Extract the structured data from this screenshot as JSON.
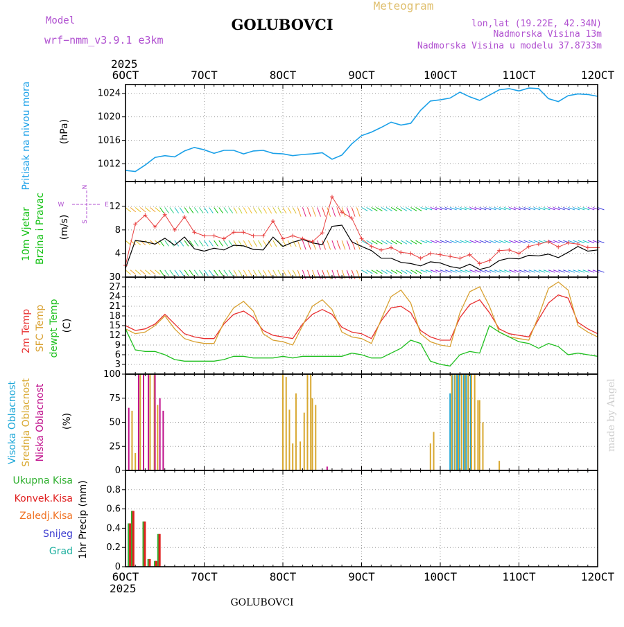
{
  "header": {
    "model_label": "Model",
    "model_name": "wrf−nmm_v3.9.1 e3km",
    "station": "GOLUBOVCI",
    "product": "Meteogram",
    "lonlat": "lon,lat (19.22E, 42.34N)",
    "elevation": "Nadmorska Visina 13m",
    "model_elevation": "Nadmorska Visina u modelu 37.8733m",
    "year_top": "2025",
    "year_bottom": "2025",
    "footer_station": "GOLUBOVCI",
    "credit": "made by Angel"
  },
  "colors": {
    "pressure": "#1aa0e8",
    "wind_label": "#10c010",
    "temp_2m": "#e83030",
    "sfc_temp": "#d8a030",
    "dewpt": "#20c020",
    "high_cloud": "#20a8d8",
    "mid_cloud": "#d8a830",
    "low_cloud": "#c0108c",
    "wind_speed_10m": "#000000",
    "wind_gust": "#e84040",
    "model_text": "#b050d0",
    "meteogram_text": "#e0c070",
    "precip_total": "#30b030",
    "precip_conv": "#e02020",
    "precip_ice": "#f07020",
    "snow": "#4040d0",
    "hail": "#20b0a0"
  },
  "chart_data": [
    {
      "id": "pressure",
      "type": "line",
      "title": "Pritisak na nivou mora",
      "ylabel": "(hPa)",
      "ylim": [
        1009,
        1025.5
      ],
      "yticks": [
        1012,
        1016,
        1020,
        1024
      ],
      "xlim": [
        0,
        144
      ],
      "xticks_top": [
        "6OCT",
        "7OCT",
        "8OCT",
        "9OCT",
        "10OCT",
        "11OCT",
        "12OCT"
      ],
      "xticks_bottom": [
        "6OCT",
        "7OCT",
        "8OCT",
        "9OCT",
        "10OCT",
        "11OCT",
        "12OCT"
      ],
      "grid": true,
      "x": [
        0,
        3,
        6,
        9,
        12,
        15,
        18,
        21,
        24,
        27,
        30,
        33,
        36,
        39,
        42,
        45,
        48,
        51,
        54,
        57,
        60,
        63,
        66,
        69,
        72,
        75,
        78,
        81,
        84,
        87,
        90,
        93,
        96,
        99,
        102,
        105,
        108,
        111,
        114,
        117,
        120,
        123,
        126,
        129,
        132,
        135,
        138,
        141,
        144
      ],
      "values": [
        1010.9,
        1010.7,
        1011.8,
        1013.1,
        1013.4,
        1013.2,
        1014.2,
        1014.8,
        1014.4,
        1013.8,
        1014.3,
        1014.3,
        1013.7,
        1014.2,
        1014.3,
        1013.8,
        1013.7,
        1013.4,
        1013.6,
        1013.7,
        1013.9,
        1012.8,
        1013.5,
        1015.4,
        1016.8,
        1017.4,
        1018.2,
        1019.1,
        1018.6,
        1018.9,
        1021.1,
        1022.7,
        1022.9,
        1023.2,
        1024.2,
        1023.4,
        1022.8,
        1023.7,
        1024.6,
        1024.8,
        1024.4,
        1024.9,
        1024.8,
        1023.1,
        1022.6,
        1023.6,
        1023.9,
        1023.8,
        1023.5
      ]
    },
    {
      "id": "wind",
      "type": "line",
      "title_line1": "10m Vjetar",
      "title_line2": "Brzina i Pravac",
      "ylabel": "(m/s)",
      "ylim": [
        0,
        16.2
      ],
      "yticks": [
        0,
        4,
        8,
        12
      ],
      "compass_n": "N",
      "compass_w": "W",
      "compass_e": "E",
      "compass_s": "S",
      "grid": true,
      "x": [
        0,
        3,
        6,
        9,
        12,
        15,
        18,
        21,
        24,
        27,
        30,
        33,
        36,
        39,
        42,
        45,
        48,
        51,
        54,
        57,
        60,
        63,
        66,
        69,
        72,
        75,
        78,
        81,
        84,
        87,
        90,
        93,
        96,
        99,
        102,
        105,
        108,
        111,
        114,
        117,
        120,
        123,
        126,
        129,
        132,
        135,
        138,
        141,
        144
      ],
      "series": [
        {
          "name": "10m wind speed",
          "values": [
            1.5,
            6.2,
            6.0,
            5.6,
            6.6,
            5.4,
            6.8,
            4.8,
            4.4,
            4.9,
            4.6,
            5.4,
            5.3,
            4.7,
            4.6,
            6.8,
            5.2,
            5.9,
            6.4,
            5.8,
            5.5,
            8.6,
            8.8,
            6.0,
            5.2,
            4.5,
            3.2,
            3.2,
            2.5,
            2.3,
            1.9,
            2.6,
            2.4,
            1.8,
            1.5,
            2.2,
            1.3,
            1.7,
            2.8,
            3.2,
            3.1,
            3.7,
            3.6,
            3.9,
            3.3,
            4.2,
            5.2,
            4.4,
            4.6
          ]
        },
        {
          "name": "gust",
          "values": [
            2.0,
            9.0,
            10.5,
            8.5,
            10.6,
            8.0,
            10.2,
            7.6,
            7.0,
            7.0,
            6.5,
            7.6,
            7.6,
            7.0,
            7.0,
            9.5,
            6.5,
            7.0,
            6.5,
            6.0,
            7.5,
            13.6,
            11.0,
            10.0,
            6.5,
            5.2,
            4.6,
            5.0,
            4.2,
            4.0,
            3.2,
            4.0,
            3.8,
            3.5,
            3.2,
            3.8,
            2.3,
            2.8,
            4.5,
            4.6,
            4.0,
            5.2,
            5.6,
            6.0,
            5.1,
            5.8,
            5.6,
            5.0,
            5.0
          ]
        }
      ]
    },
    {
      "id": "temperature",
      "type": "line",
      "title_2m": "2m Temp",
      "title_sfc": "SFC Temp",
      "title_dew": "dewpt Temp",
      "ylabel": "(C)",
      "ylim": [
        0,
        30
      ],
      "yticks": [
        0,
        3,
        6,
        9,
        12,
        15,
        18,
        21,
        24,
        27,
        30
      ],
      "grid": true,
      "x": [
        0,
        3,
        6,
        9,
        12,
        15,
        18,
        21,
        24,
        27,
        30,
        33,
        36,
        39,
        42,
        45,
        48,
        51,
        54,
        57,
        60,
        63,
        66,
        69,
        72,
        75,
        78,
        81,
        84,
        87,
        90,
        93,
        96,
        99,
        102,
        105,
        108,
        111,
        114,
        117,
        120,
        123,
        126,
        129,
        132,
        135,
        138,
        141,
        144
      ],
      "series": [
        {
          "name": "2m Temp",
          "values": [
            15.0,
            13.5,
            14.0,
            15.5,
            18.5,
            15.5,
            12.5,
            11.5,
            11.0,
            11.0,
            15.5,
            18.5,
            19.5,
            17.5,
            13.5,
            12.0,
            11.5,
            11.0,
            15.5,
            18.5,
            20.0,
            18.5,
            14.5,
            13.0,
            12.5,
            11.0,
            16.5,
            20.5,
            21.0,
            19.0,
            13.5,
            11.5,
            10.5,
            10.5,
            17.5,
            21.5,
            23.0,
            19.0,
            14.0,
            12.5,
            12.0,
            11.5,
            17.0,
            22.0,
            24.5,
            23.5,
            16.0,
            14.0,
            12.5
          ]
        },
        {
          "name": "SFC Temp",
          "values": [
            14.0,
            12.5,
            13.0,
            15.0,
            18.0,
            14.0,
            11.0,
            10.0,
            9.5,
            9.5,
            16.0,
            20.5,
            22.5,
            19.5,
            12.5,
            10.5,
            10.0,
            9.0,
            15.0,
            21.0,
            23.0,
            20.0,
            13.0,
            11.5,
            11.0,
            9.5,
            17.0,
            24.0,
            26.0,
            22.0,
            12.5,
            10.0,
            9.0,
            8.5,
            19.0,
            25.5,
            27.0,
            21.0,
            13.0,
            11.5,
            11.0,
            10.5,
            18.0,
            26.5,
            28.5,
            26.0,
            15.0,
            13.0,
            11.5
          ]
        },
        {
          "name": "dewpt Temp",
          "values": [
            14.0,
            7.5,
            7.0,
            7.0,
            6.0,
            4.5,
            4.0,
            4.0,
            4.0,
            4.0,
            4.5,
            5.5,
            5.5,
            5.0,
            5.0,
            5.0,
            5.5,
            5.0,
            5.5,
            5.5,
            5.5,
            5.5,
            5.5,
            6.5,
            6.0,
            5.0,
            5.0,
            6.5,
            8.0,
            10.5,
            9.5,
            4.0,
            3.0,
            2.5,
            6.0,
            7.0,
            6.5,
            15.0,
            13.0,
            11.5,
            10.0,
            9.5,
            8.0,
            9.5,
            8.5,
            6.0,
            6.5,
            6.0,
            5.5
          ]
        }
      ]
    },
    {
      "id": "clouds",
      "type": "bar",
      "title_high": "Visoka Oblacnost",
      "title_mid": "Srednja Oblacnost",
      "title_low": "Niska Oblacnost",
      "ylabel": "(%)",
      "ylim": [
        0,
        100
      ],
      "yticks": [
        0,
        25,
        50,
        75,
        100
      ],
      "grid": true,
      "series": [
        {
          "name": "Visoka Oblacnost",
          "x": [
            99,
            99.7,
            100.4,
            101.1,
            101.8,
            102.5,
            103.2,
            103.9,
            104.6,
            105.3
          ],
          "values": [
            80,
            100,
            100,
            100,
            100,
            100,
            100,
            100,
            100,
            100
          ]
        },
        {
          "name": "Srednja Oblacnost",
          "x": [
            2,
            3,
            4.5,
            5.5,
            7.5,
            8.8,
            9.8,
            48,
            49,
            50,
            51,
            52,
            53.3,
            54.5,
            55.5,
            56.5,
            57,
            58,
            93,
            94,
            99.5,
            100.5,
            101.5,
            102.5,
            103.5,
            104.5,
            105.5,
            106.5,
            107.5,
            108,
            109,
            114
          ],
          "values": [
            62,
            18,
            100,
            100,
            100,
            100,
            68,
            100,
            97,
            63,
            28,
            80,
            30,
            60,
            100,
            100,
            75,
            68,
            28,
            40,
            100,
            100,
            100,
            100,
            100,
            100,
            100,
            100,
            73,
            73,
            50,
            10
          ]
        },
        {
          "name": "Niska Oblacnost",
          "x": [
            1,
            4,
            5.5,
            7,
            9,
            10.5,
            11.5,
            61.5
          ],
          "values": [
            65,
            100,
            100,
            100,
            100,
            75,
            62,
            4
          ]
        }
      ]
    },
    {
      "id": "precip",
      "type": "bar",
      "labels": [
        "Ukupna Kisa",
        "Konvek.Kisa",
        "Zaledj.Kisa",
        "Snijeg",
        "Grad"
      ],
      "ylabel": "1hr Precip (mm)",
      "ylim": [
        0,
        1.0
      ],
      "yticks": [
        0,
        0.2,
        0.4,
        0.6,
        0.8
      ],
      "ytick_labels": [
        "0",
        "0.2",
        "0.4",
        "0.6",
        "0.8"
      ],
      "grid": true,
      "series": [
        {
          "name": "Ukupna Kisa",
          "x": [
            1,
            2,
            5.5,
            7,
            9,
            10
          ],
          "values": [
            0.45,
            0.58,
            0.47,
            0.08,
            0.06,
            0.34
          ]
        },
        {
          "name": "Konvek.Kisa",
          "x": [
            1.4,
            2.4,
            5.9,
            7.4,
            9.4,
            10.4
          ],
          "values": [
            0.45,
            0.58,
            0.47,
            0.08,
            0.06,
            0.34
          ]
        }
      ]
    }
  ]
}
